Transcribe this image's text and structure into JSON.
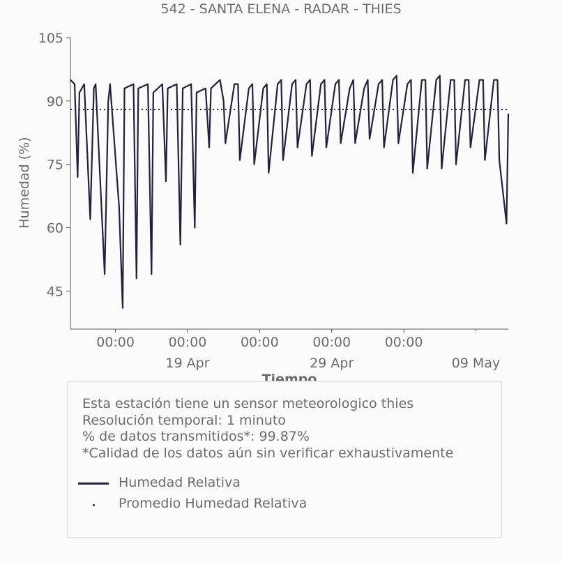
{
  "chart_data": {
    "type": "line",
    "title": "542 - SANTA ELENA - RADAR - THIES",
    "xlabel": "Tiempo",
    "ylabel": "Humedad (%)",
    "ylim": [
      36,
      105
    ],
    "yticks": [
      45,
      60,
      75,
      90,
      105
    ],
    "x_start": "2023-04-10T21:00",
    "x_end": "2023-05-11T06:00",
    "xtick_time_labels": [
      "00:00",
      "00:00",
      "00:00",
      "00:00",
      "00:00"
    ],
    "xtick_time_positions": [
      "2023-04-14T00:00",
      "2023-04-19T00:00",
      "2023-04-24T00:00",
      "2023-04-29T00:00",
      "2023-05-04T00:00"
    ],
    "xtick_date_labels": [
      "19 Apr",
      "29 Apr",
      "09 May"
    ],
    "xtick_date_positions": [
      "2023-04-19T00:00",
      "2023-04-29T00:00",
      "2023-05-09T00:00"
    ],
    "grid": false,
    "series": [
      {
        "name": "Humedad Relativa",
        "color": "#22223d",
        "style": "solid",
        "x": [
          "2023-04-10T21:00",
          "2023-04-11T04:00",
          "2023-04-11T09:00",
          "2023-04-11T12:00",
          "2023-04-11T20:00",
          "2023-04-12T06:00",
          "2023-04-12T12:00",
          "2023-04-12T15:00",
          "2023-04-13T06:00",
          "2023-04-13T12:00",
          "2023-04-13T15:00",
          "2023-04-14T06:00",
          "2023-04-14T12:00",
          "2023-04-14T15:00",
          "2023-04-15T06:00",
          "2023-04-15T11:00",
          "2023-04-15T14:00",
          "2023-04-16T06:00",
          "2023-04-16T12:00",
          "2023-04-16T15:00",
          "2023-04-17T06:00",
          "2023-04-17T12:00",
          "2023-04-17T15:00",
          "2023-04-18T06:00",
          "2023-04-18T12:00",
          "2023-04-18T16:00",
          "2023-04-19T06:00",
          "2023-04-19T12:00",
          "2023-04-19T15:00",
          "2023-04-20T06:00",
          "2023-04-20T12:00",
          "2023-04-20T15:00",
          "2023-04-21T06:00",
          "2023-04-21T12:00",
          "2023-04-21T15:00",
          "2023-04-22T06:00",
          "2023-04-22T12:00",
          "2023-04-22T15:00",
          "2023-04-23T06:00",
          "2023-04-23T12:00",
          "2023-04-23T15:00",
          "2023-04-24T06:00",
          "2023-04-24T12:00",
          "2023-04-24T15:00",
          "2023-04-25T06:00",
          "2023-04-25T12:00",
          "2023-04-25T15:00",
          "2023-04-26T06:00",
          "2023-04-26T12:00",
          "2023-04-26T15:00",
          "2023-04-27T06:00",
          "2023-04-27T12:00",
          "2023-04-27T15:00",
          "2023-04-28T06:00",
          "2023-04-28T12:00",
          "2023-04-28T15:00",
          "2023-04-29T06:00",
          "2023-04-29T12:00",
          "2023-04-29T15:00",
          "2023-04-30T06:00",
          "2023-04-30T12:00",
          "2023-04-30T15:00",
          "2023-05-01T06:00",
          "2023-05-01T12:00",
          "2023-05-01T15:00",
          "2023-05-02T06:00",
          "2023-05-02T12:00",
          "2023-05-02T15:00",
          "2023-05-03T06:00",
          "2023-05-03T12:00",
          "2023-05-03T15:00",
          "2023-05-04T06:00",
          "2023-05-04T12:00",
          "2023-05-04T15:00",
          "2023-05-05T06:00",
          "2023-05-05T12:00",
          "2023-05-05T15:00",
          "2023-05-06T06:00",
          "2023-05-06T12:00",
          "2023-05-06T15:00",
          "2023-05-07T06:00",
          "2023-05-07T12:00",
          "2023-05-07T15:00",
          "2023-05-08T06:00",
          "2023-05-08T12:00",
          "2023-05-08T15:00",
          "2023-05-09T06:00",
          "2023-05-09T12:00",
          "2023-05-09T15:00",
          "2023-05-10T06:00",
          "2023-05-10T12:00",
          "2023-05-10T15:00",
          "2023-05-11T03:00",
          "2023-05-11T06:00"
        ],
        "y": [
          95,
          94,
          72,
          92,
          94,
          62,
          93,
          94,
          49,
          90,
          94,
          65,
          41,
          93,
          94,
          48,
          93,
          94,
          49,
          92,
          94,
          71,
          93,
          94,
          56,
          93,
          94,
          60,
          92,
          93,
          79,
          93,
          95,
          90,
          80,
          94,
          94,
          76,
          93,
          94,
          75,
          93,
          94,
          73,
          94,
          95,
          76,
          94,
          95,
          79,
          94,
          95,
          77,
          94,
          95,
          79,
          94,
          95,
          80,
          93,
          95,
          80,
          93,
          95,
          81,
          94,
          95,
          79,
          95,
          96,
          80,
          94,
          95,
          73,
          95,
          95,
          74,
          95,
          96,
          74,
          95,
          95,
          75,
          95,
          95,
          79,
          95,
          95,
          76,
          95,
          95,
          76,
          61,
          87
        ]
      },
      {
        "name": "Promedio Humedad Relativa",
        "color": "#22223d",
        "style": "dotted",
        "constant": 88
      }
    ]
  },
  "info": {
    "lines": [
      "Esta estación tiene un sensor meteorologico thies",
      "Resolución temporal: 1 minuto",
      "% de datos transmitidos*: 99.87%",
      "*Calidad de los datos aún sin verificar exhaustivamente"
    ]
  }
}
